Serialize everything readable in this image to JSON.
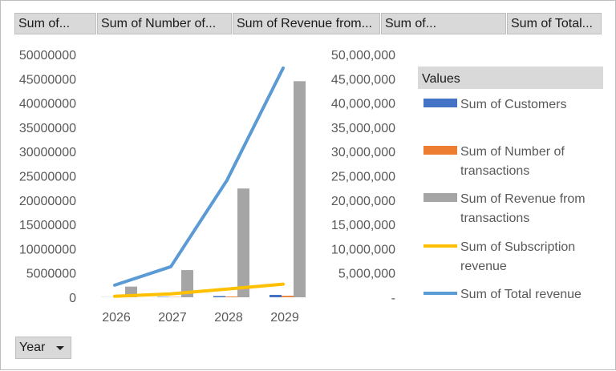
{
  "field_buttons": [
    {
      "label": "Sum of..."
    },
    {
      "label": "Sum of Number of..."
    },
    {
      "label": "Sum of Revenue from..."
    },
    {
      "label": "Sum of..."
    },
    {
      "label": "Sum of Total..."
    }
  ],
  "year_button": {
    "label": "Year"
  },
  "colors": {
    "customers": "#4472c4",
    "transactions": "#ed7d31",
    "revenue_transactions": "#a5a5a5",
    "subscription": "#ffc000",
    "total": "#5b9bd5"
  },
  "chart_data": {
    "type": "bar",
    "categories": [
      "2026",
      "2027",
      "2028",
      "2029"
    ],
    "series": [
      {
        "name": "Sum of Customers",
        "kind": "bar",
        "axis": "left",
        "values": [
          20000,
          80000,
          250000,
          500000
        ]
      },
      {
        "name": "Sum of Number of transactions",
        "kind": "bar",
        "axis": "left",
        "values": [
          20000,
          60000,
          150000,
          300000
        ]
      },
      {
        "name": "Sum of Revenue from transactions",
        "kind": "bar",
        "axis": "left",
        "values": [
          2200000,
          5600000,
          22400000,
          44500000
        ]
      },
      {
        "name": "Sum of Subscription revenue",
        "kind": "line",
        "axis": "right",
        "values": [
          200000,
          700000,
          1700000,
          2700000
        ]
      },
      {
        "name": "Sum of Total revenue",
        "kind": "line",
        "axis": "right",
        "values": [
          2500000,
          6300000,
          24100000,
          47200000
        ]
      }
    ],
    "ylim": [
      0,
      50000000
    ],
    "y_left_ticks": [
      "50000000",
      "45000000",
      "40000000",
      "35000000",
      "30000000",
      "25000000",
      "20000000",
      "15000000",
      "10000000",
      "5000000",
      "0"
    ],
    "y_right_ticks": [
      "50,000,000",
      "45,000,000",
      "40,000,000",
      "35,000,000",
      "30,000,000",
      "25,000,000",
      "20,000,000",
      "15,000,000",
      "10,000,000",
      "5,000,000",
      "-"
    ],
    "legend_title": "Values",
    "legend_entries": [
      {
        "lines": [
          "Sum of Customers"
        ],
        "series": 0
      },
      {
        "lines": [
          "Sum of Number of",
          "transactions"
        ],
        "series": 1
      },
      {
        "lines": [
          "Sum of Revenue from",
          "transactions"
        ],
        "series": 2
      },
      {
        "lines": [
          "Sum of Subscription",
          "revenue"
        ],
        "series": 3
      },
      {
        "lines": [
          "Sum of Total revenue"
        ],
        "series": 4
      }
    ],
    "legend_position": "right",
    "grid": false
  }
}
